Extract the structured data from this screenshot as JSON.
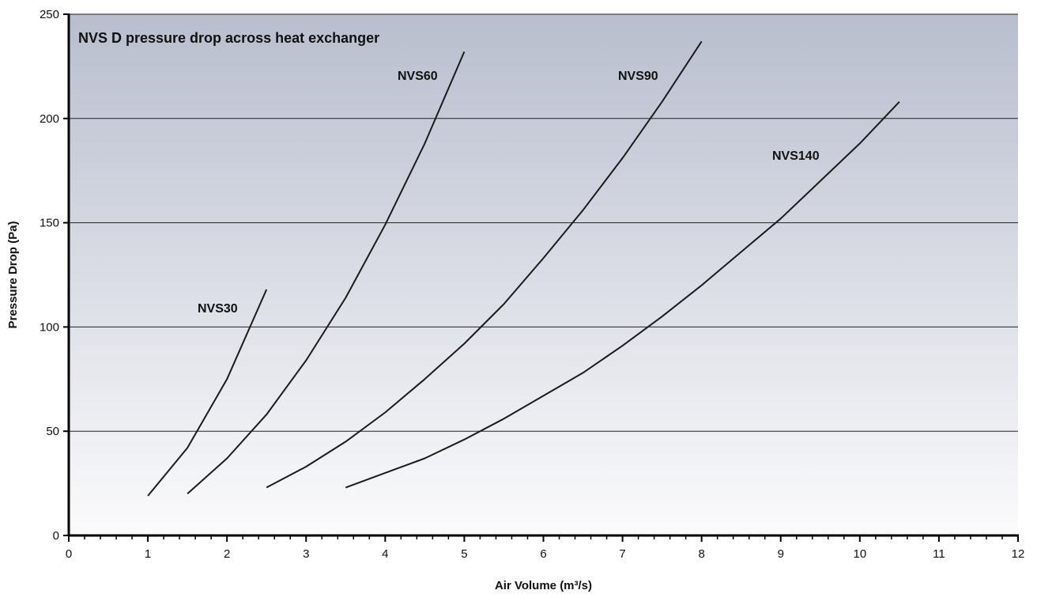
{
  "chart_data": {
    "type": "line",
    "title": "NVS D pressure drop across heat exchanger",
    "xlabel": "Air Volume (m³/s)",
    "ylabel": "Pressure Drop (Pa)",
    "xlim": [
      0,
      12
    ],
    "ylim": [
      0,
      250
    ],
    "x_ticks": [
      0,
      1,
      2,
      3,
      4,
      5,
      6,
      7,
      8,
      9,
      10,
      11,
      12
    ],
    "y_ticks": [
      0,
      50,
      100,
      150,
      200,
      250
    ],
    "x_minor_step": 0.2,
    "grid": "horizontal",
    "legend": "none (series labeled directly)",
    "colors": {
      "background_top": "#b9bece",
      "background_bottom": "#fbfbfc",
      "line": "#1a1a1a",
      "grid": "#222222"
    },
    "series": [
      {
        "name": "NVS30",
        "x": [
          1,
          1.5,
          2,
          2.5
        ],
        "y": [
          19,
          42,
          75,
          118
        ]
      },
      {
        "name": "NVS60",
        "x": [
          1.5,
          2,
          2.5,
          3,
          3.5,
          4,
          4.5,
          5
        ],
        "y": [
          20,
          37,
          58,
          84,
          114,
          149,
          188,
          232
        ]
      },
      {
        "name": "NVS90",
        "x": [
          2.5,
          3,
          3.5,
          4,
          4.5,
          5,
          5.5,
          6,
          6.5,
          7,
          7.5,
          8
        ],
        "y": [
          23,
          33,
          45,
          59,
          75,
          92,
          111,
          133,
          156,
          181,
          208,
          237
        ]
      },
      {
        "name": "NVS140",
        "x": [
          3.5,
          4,
          4.5,
          5,
          5.5,
          6,
          6.5,
          7,
          7.5,
          8,
          8.5,
          9,
          9.5,
          10,
          10.5
        ],
        "y": [
          23,
          30,
          37,
          46,
          56,
          67,
          78,
          91,
          105,
          120,
          136,
          152,
          170,
          188,
          208
        ]
      }
    ]
  }
}
